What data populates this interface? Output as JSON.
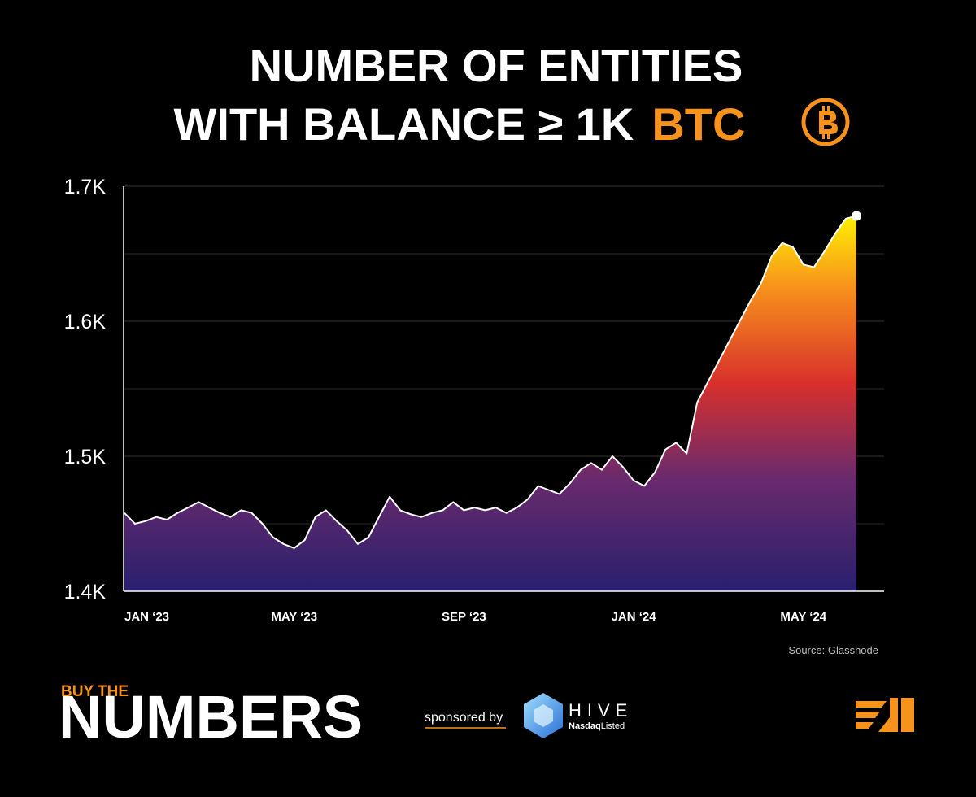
{
  "chart_data": {
    "type": "area",
    "title": [
      "NUMBER OF ENTITIES",
      "WITH BALANCE ≥ 1K"
    ],
    "title_highlight": "BTC",
    "categories": [
      "JAN ‘23",
      null,
      null,
      null,
      null,
      null,
      null,
      null,
      null,
      null,
      null,
      null,
      null,
      null,
      null,
      null,
      "MAY ‘23",
      null,
      null,
      null,
      null,
      null,
      null,
      null,
      null,
      null,
      null,
      null,
      null,
      null,
      null,
      null,
      "SEP ‘23",
      null,
      null,
      null,
      null,
      null,
      null,
      null,
      null,
      null,
      null,
      null,
      null,
      null,
      null,
      null,
      "JAN ‘24",
      null,
      null,
      null,
      null,
      null,
      null,
      null,
      null,
      null,
      null,
      null,
      null,
      null,
      null,
      null,
      "MAY ‘24",
      null,
      null,
      null,
      null,
      null
    ],
    "values": [
      1458,
      1450,
      1452,
      1455,
      1453,
      1458,
      1462,
      1466,
      1462,
      1458,
      1455,
      1460,
      1458,
      1450,
      1440,
      1435,
      1432,
      1438,
      1455,
      1460,
      1452,
      1445,
      1435,
      1440,
      1455,
      1470,
      1460,
      1457,
      1455,
      1458,
      1460,
      1466,
      1460,
      1462,
      1460,
      1462,
      1458,
      1462,
      1468,
      1478,
      1475,
      1472,
      1480,
      1490,
      1495,
      1490,
      1500,
      1492,
      1482,
      1478,
      1488,
      1505,
      1510,
      1502,
      1540,
      1555,
      1570,
      1585,
      1600,
      1615,
      1628,
      1648,
      1658,
      1655,
      1642,
      1640,
      1652,
      1665,
      1676,
      1678
    ],
    "line_color": "#ffffff",
    "ylim": [
      1400,
      1700
    ],
    "yticks": [
      {
        "value": 1400,
        "label": "1.4K"
      },
      {
        "value": 1500,
        "label": "1.5K"
      },
      {
        "value": 1600,
        "label": "1.6K"
      },
      {
        "value": 1700,
        "label": "1.7K"
      }
    ],
    "minor_grid": [
      1450,
      1550,
      1650
    ],
    "grid": true,
    "source": "Source: Glassnode"
  },
  "branding": {
    "brand_top": "BUY THE",
    "brand_main": "NUMBERS",
    "sponsor_label": "sponsored by",
    "sponsor_name": "HIVE",
    "sponsor_sub_bold": "Nasdaq",
    "sponsor_sub": "Listed"
  }
}
